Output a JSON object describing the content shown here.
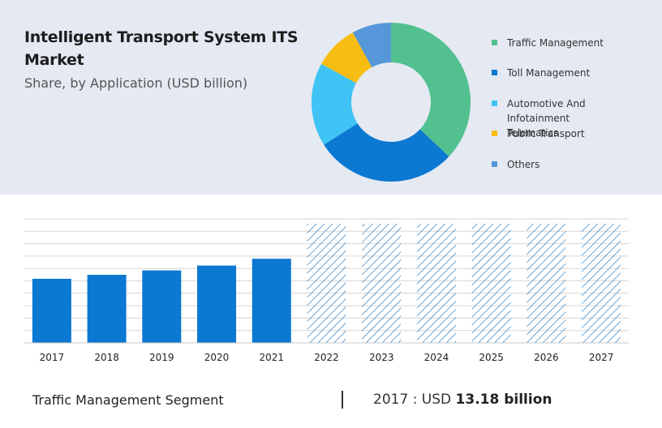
{
  "header": {
    "title": "Intelligent Transport System ITS Market",
    "subtitle": "Share, by Application (USD billion)"
  },
  "colors": {
    "panel_bg": "#e4e9f2",
    "bar": "#0b78d1",
    "forecast_hatch": "#2e7fc0"
  },
  "chart_data": [
    {
      "type": "pie",
      "variant": "donut",
      "title": "",
      "series": [
        {
          "name": "Traffic Management",
          "value": 37,
          "color": "#52c08f"
        },
        {
          "name": "Toll Management",
          "value": 29,
          "color": "#0b78d1"
        },
        {
          "name": "Automotive And Infotainment Telematics",
          "value": 17,
          "color": "#3fc4f5"
        },
        {
          "name": "Public Transport",
          "value": 9,
          "color": "#f7bd12"
        },
        {
          "name": "Others",
          "value": 8,
          "color": "#5597d8"
        }
      ],
      "legend_position": "right"
    },
    {
      "type": "bar",
      "title": "",
      "categories": [
        "2017",
        "2018",
        "2019",
        "2020",
        "2021",
        "2022",
        "2023",
        "2024",
        "2025",
        "2026",
        "2027"
      ],
      "values": [
        13.18,
        14.0,
        14.9,
        15.9,
        17.3,
        null,
        null,
        null,
        null,
        null,
        null
      ],
      "forecast_categories": [
        "2022",
        "2023",
        "2024",
        "2025",
        "2026",
        "2027"
      ],
      "forecast_style": "hatched",
      "xlabel": "",
      "ylabel": "",
      "ylim": [
        0,
        25.5
      ],
      "grid": true
    }
  ],
  "footer": {
    "segment": "Traffic Management Segment",
    "value_prefix": "2017 : USD ",
    "value_amount": "13.18 billion"
  }
}
